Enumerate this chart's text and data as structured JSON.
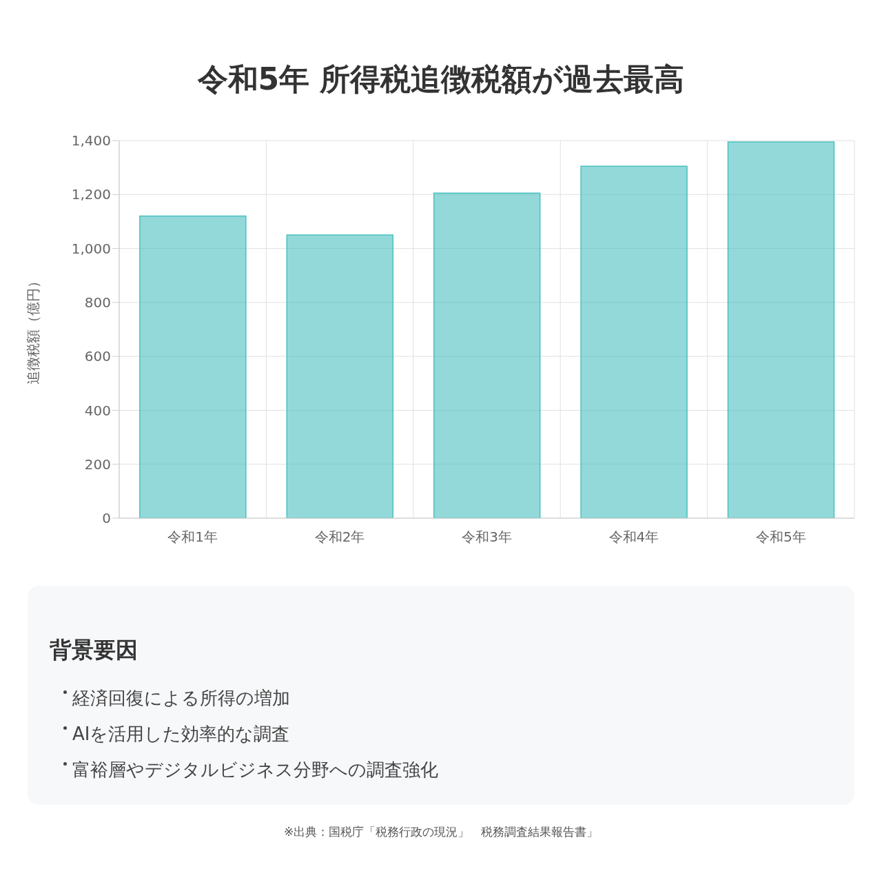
{
  "chart_data": [
    {
      "type": "bar",
      "title": "令和5年 所得税追徴税額が過去最高",
      "ylabel": "追徴税額（億円）",
      "categories": [
        "令和1年",
        "令和2年",
        "令和3年",
        "令和4年",
        "令和5年"
      ],
      "values": [
        1120,
        1050,
        1205,
        1305,
        1395
      ],
      "color": "#4bc0c0",
      "ylim": [
        0,
        1400
      ],
      "yticks": [
        {
          "value": 0,
          "label": "0"
        },
        {
          "value": 200,
          "label": "200"
        },
        {
          "value": 400,
          "label": "400"
        },
        {
          "value": 600,
          "label": "600"
        },
        {
          "value": 800,
          "label": "800"
        },
        {
          "value": 1000,
          "label": "1,000"
        },
        {
          "value": 1200,
          "label": "1,200"
        },
        {
          "value": 1400,
          "label": "1,400"
        }
      ],
      "grid": true,
      "annotations": [
        "※出典：国税庁「税務行政の現況」　税務調査結果報告書」"
      ]
    },
    {
      "type": "other",
      "title": "背景要因",
      "annotations": [
        "経済回復による所得の増加",
        "AIを活用した効率的な調査",
        "富裕層やデジタルビジネス分野への調査強化"
      ]
    }
  ]
}
